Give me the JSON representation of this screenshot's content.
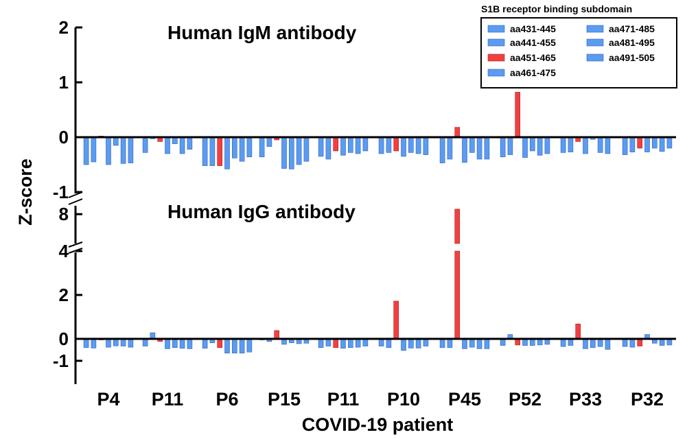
{
  "chart_data": [
    {
      "type": "bar",
      "title": "Human IgM antibody",
      "ylabel": "Z-score",
      "xlabel": "COVID-19 patient",
      "ylim": [
        -1,
        2
      ],
      "yticks": [
        {
          "value": -1,
          "label": "-1"
        },
        {
          "value": 0,
          "label": "0"
        },
        {
          "value": 1,
          "label": "1"
        },
        {
          "value": 2,
          "label": "2"
        }
      ],
      "categories": [
        "P4",
        "P11",
        "P6",
        "P15",
        "P11",
        "P10",
        "P45",
        "P52",
        "P33",
        "P32"
      ],
      "series": [
        {
          "name": "aa431-445",
          "color": "#5b9bf0",
          "values": [
            -0.5,
            -0.28,
            -0.52,
            -0.36,
            -0.35,
            -0.3,
            -0.47,
            -0.36,
            -0.28,
            -0.32
          ]
        },
        {
          "name": "aa441-455",
          "color": "#5b9bf0",
          "values": [
            -0.45,
            -0.03,
            -0.52,
            -0.17,
            -0.4,
            -0.28,
            -0.4,
            -0.32,
            -0.27,
            -0.27
          ]
        },
        {
          "name": "aa451-465",
          "color": "#f04040",
          "values": [
            0.02,
            -0.08,
            -0.52,
            -0.05,
            -0.25,
            -0.25,
            0.18,
            0.82,
            -0.08,
            -0.2
          ]
        },
        {
          "name": "aa461-475",
          "color": "#5b9bf0",
          "values": [
            -0.5,
            -0.3,
            -0.58,
            -0.57,
            -0.33,
            -0.35,
            -0.46,
            -0.37,
            -0.3,
            -0.27
          ]
        },
        {
          "name": "aa471-485",
          "color": "#5b9bf0",
          "values": [
            -0.15,
            -0.12,
            -0.38,
            -0.58,
            -0.28,
            -0.28,
            -0.28,
            -0.25,
            -0.04,
            -0.2
          ]
        },
        {
          "name": "aa481-495",
          "color": "#5b9bf0",
          "values": [
            -0.48,
            -0.3,
            -0.44,
            -0.5,
            -0.3,
            -0.3,
            -0.4,
            -0.33,
            -0.28,
            -0.26
          ]
        },
        {
          "name": "aa491-505",
          "color": "#5b9bf0",
          "values": [
            -0.47,
            -0.22,
            -0.36,
            -0.44,
            -0.25,
            -0.32,
            -0.4,
            -0.3,
            -0.3,
            -0.2
          ]
        }
      ]
    },
    {
      "type": "bar",
      "title": "Human IgG antibody",
      "ylabel": "Z-score",
      "xlabel": "COVID-19 patient",
      "axis_break": [
        4,
        4.5
      ],
      "yticks": [
        {
          "value": -1,
          "label": "-1"
        },
        {
          "value": 0,
          "label": "0"
        },
        {
          "value": 2,
          "label": "2"
        },
        {
          "value": 4,
          "label": "4"
        },
        {
          "value": 8,
          "label": "8"
        }
      ],
      "categories": [
        "P4",
        "P11",
        "P6",
        "P15",
        "P11",
        "P10",
        "P45",
        "P52",
        "P33",
        "P32"
      ],
      "series": [
        {
          "name": "aa431-445",
          "color": "#5b9bf0",
          "values": [
            -0.4,
            -0.33,
            -0.43,
            -0.05,
            -0.4,
            -0.33,
            -0.4,
            -0.3,
            -0.35,
            -0.35
          ]
        },
        {
          "name": "aa441-455",
          "color": "#5b9bf0",
          "values": [
            -0.42,
            0.28,
            -0.18,
            -0.12,
            -0.33,
            -0.4,
            -0.4,
            0.2,
            -0.3,
            -0.38
          ]
        },
        {
          "name": "aa451-465",
          "color": "#f04040",
          "values": [
            -0.05,
            -0.12,
            -0.4,
            0.38,
            -0.4,
            1.72,
            8.6,
            -0.28,
            0.68,
            -0.33
          ]
        },
        {
          "name": "aa461-475",
          "color": "#5b9bf0",
          "values": [
            -0.38,
            -0.45,
            -0.65,
            -0.25,
            -0.43,
            -0.53,
            -0.45,
            -0.3,
            -0.45,
            0.2
          ]
        },
        {
          "name": "aa471-485",
          "color": "#5b9bf0",
          "values": [
            -0.32,
            -0.4,
            -0.65,
            -0.18,
            -0.4,
            -0.42,
            -0.38,
            -0.3,
            -0.4,
            -0.2
          ]
        },
        {
          "name": "aa481-495",
          "color": "#5b9bf0",
          "values": [
            -0.33,
            -0.43,
            -0.65,
            -0.22,
            -0.38,
            -0.42,
            -0.45,
            -0.28,
            -0.35,
            -0.3
          ]
        },
        {
          "name": "aa491-505",
          "color": "#5b9bf0",
          "values": [
            -0.38,
            -0.45,
            -0.6,
            -0.2,
            -0.33,
            -0.33,
            -0.45,
            -0.25,
            -0.48,
            -0.28
          ]
        }
      ]
    }
  ],
  "legend": {
    "title": "S1B receptor  binding subdomain",
    "items": [
      {
        "label": "aa431-445",
        "color": "#5b9bf0"
      },
      {
        "label": "aa441-455",
        "color": "#5b9bf0"
      },
      {
        "label": "aa451-465",
        "color": "#f04040"
      },
      {
        "label": "aa461-475",
        "color": "#5b9bf0"
      },
      {
        "label": "aa471-485",
        "color": "#5b9bf0"
      },
      {
        "label": "aa481-495",
        "color": "#5b9bf0"
      },
      {
        "label": "aa491-505",
        "color": "#5b9bf0"
      }
    ]
  }
}
